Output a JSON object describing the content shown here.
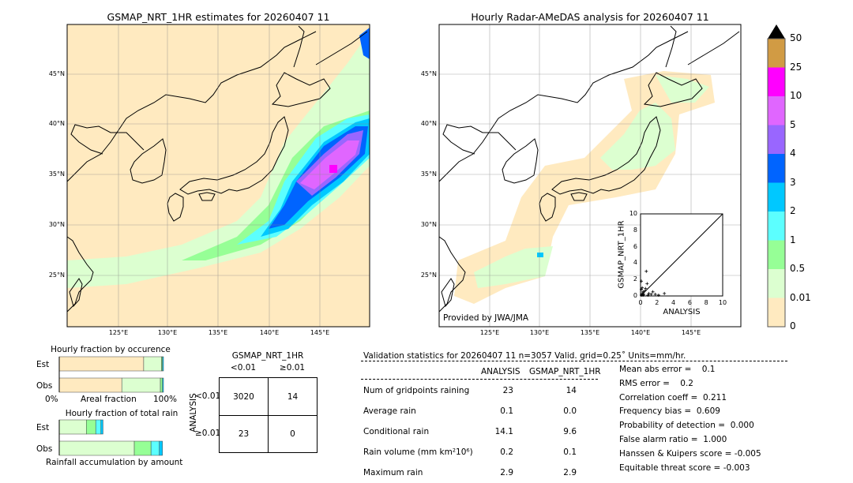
{
  "left_map": {
    "title": "GSMAP_NRT_1HR estimates for 20260407 11",
    "lon_ticks": [
      "125°E",
      "130°E",
      "135°E",
      "140°E",
      "145°E"
    ],
    "lat_ticks": [
      "45°N",
      "40°N",
      "35°N",
      "30°N",
      "25°N"
    ]
  },
  "right_map": {
    "title": "Hourly Radar-AMeDAS analysis for 20260407 11",
    "credit": "Provided by JWA/JMA",
    "lon_ticks": [
      "125°E",
      "130°E",
      "135°E",
      "140°E",
      "145°E"
    ],
    "lat_ticks": [
      "45°N",
      "40°N",
      "35°N",
      "30°N",
      "25°N"
    ]
  },
  "colorbar": {
    "labels": [
      "50",
      "25",
      "10",
      "5",
      "4",
      "3",
      "2",
      "1",
      "0.5",
      "0.01",
      "0"
    ],
    "colors": [
      "#d19b44",
      "#ff00ff",
      "#e066ff",
      "#9966ff",
      "#0064ff",
      "#00c8ff",
      "#5cffff",
      "#96ff96",
      "#dcffd0",
      "#ffeac0"
    ],
    "extend_color": "#000000"
  },
  "chart_data": [
    {
      "type": "scatter",
      "xlabel": "ANALYSIS",
      "ylabel": "GSMAP_NRT_1HR",
      "xlim": [
        0,
        10
      ],
      "ylim": [
        0,
        10
      ],
      "ticks": [
        "0",
        "2",
        "4",
        "6",
        "8",
        "10"
      ],
      "points": [
        [
          0.1,
          0.1
        ],
        [
          0.2,
          0.3
        ],
        [
          0.3,
          0.5
        ],
        [
          0.1,
          0.8
        ],
        [
          0.4,
          0.2
        ],
        [
          0.5,
          0.6
        ],
        [
          0.2,
          1.0
        ],
        [
          0.7,
          3.0
        ],
        [
          0.8,
          1.5
        ],
        [
          1.0,
          0.3
        ],
        [
          1.3,
          0.2
        ],
        [
          1.5,
          0.5
        ],
        [
          1.8,
          0.2
        ],
        [
          2.9,
          0.3
        ],
        [
          0.1,
          1.8
        ],
        [
          0.6,
          0.9
        ],
        [
          0.3,
          0.1
        ],
        [
          0.9,
          0.1
        ],
        [
          2.2,
          0.1
        ]
      ]
    },
    {
      "type": "bar",
      "title": "Hourly fraction by occurence",
      "xlabel": "Areal fraction",
      "x_ticks": [
        "0%",
        "100%"
      ],
      "rows": [
        {
          "name": "Est",
          "fractions": [
            0.81,
            0.17,
            0.01,
            0.01
          ]
        },
        {
          "name": "Obs",
          "fractions": [
            0.6,
            0.37,
            0.02,
            0.01
          ]
        }
      ],
      "colors": [
        "#ffeac0",
        "#dcffd0",
        "#96ff96",
        "#00c8ff"
      ]
    },
    {
      "type": "bar",
      "title": "Hourly fraction of total rain",
      "xlabel": "Rainfall accumulation by amount",
      "rows": [
        {
          "name": "Est",
          "fractions": [
            0.26,
            0.09,
            0.05,
            0.02
          ]
        },
        {
          "name": "Obs",
          "fractions": [
            0.72,
            0.16,
            0.08,
            0.03
          ]
        }
      ],
      "colors": [
        "#dcffd0",
        "#96ff96",
        "#5cffff",
        "#00c8ff"
      ]
    }
  ],
  "contingency": {
    "col_title": "GSMAP_NRT_1HR",
    "row_title": "ANALYSIS",
    "cols": [
      "<0.01",
      "≥0.01"
    ],
    "rows": [
      "<0.01",
      "≥0.01"
    ],
    "cells": [
      [
        "3020",
        "14"
      ],
      [
        "23",
        "0"
      ]
    ]
  },
  "stats": {
    "header": "Validation statistics for 20260407 11  n=3057 Valid. grid=0.25˚ Units=mm/hr.",
    "col_analysis": "ANALYSIS",
    "col_gsmap": "GSMAP_NRT_1HR",
    "rows": [
      {
        "label": "Num of gridpoints raining",
        "a": "23",
        "g": "14"
      },
      {
        "label": "Average rain",
        "a": "0.1",
        "g": "0.0"
      },
      {
        "label": "Conditional rain",
        "a": "14.1",
        "g": "9.6"
      },
      {
        "label": "Rain volume (mm km²10⁶)",
        "a": "0.2",
        "g": "0.1"
      },
      {
        "label": "Maximum rain",
        "a": "2.9",
        "g": "2.9"
      }
    ],
    "scores": [
      "Mean abs error =    0.1",
      "RMS error =    0.2",
      "Correlation coeff =  0.211",
      "Frequency bias =  0.609",
      "Probability of detection =  0.000",
      "False alarm ratio =  1.000",
      "Hanssen & Kuipers score = -0.005",
      "Equitable threat score = -0.003"
    ]
  }
}
